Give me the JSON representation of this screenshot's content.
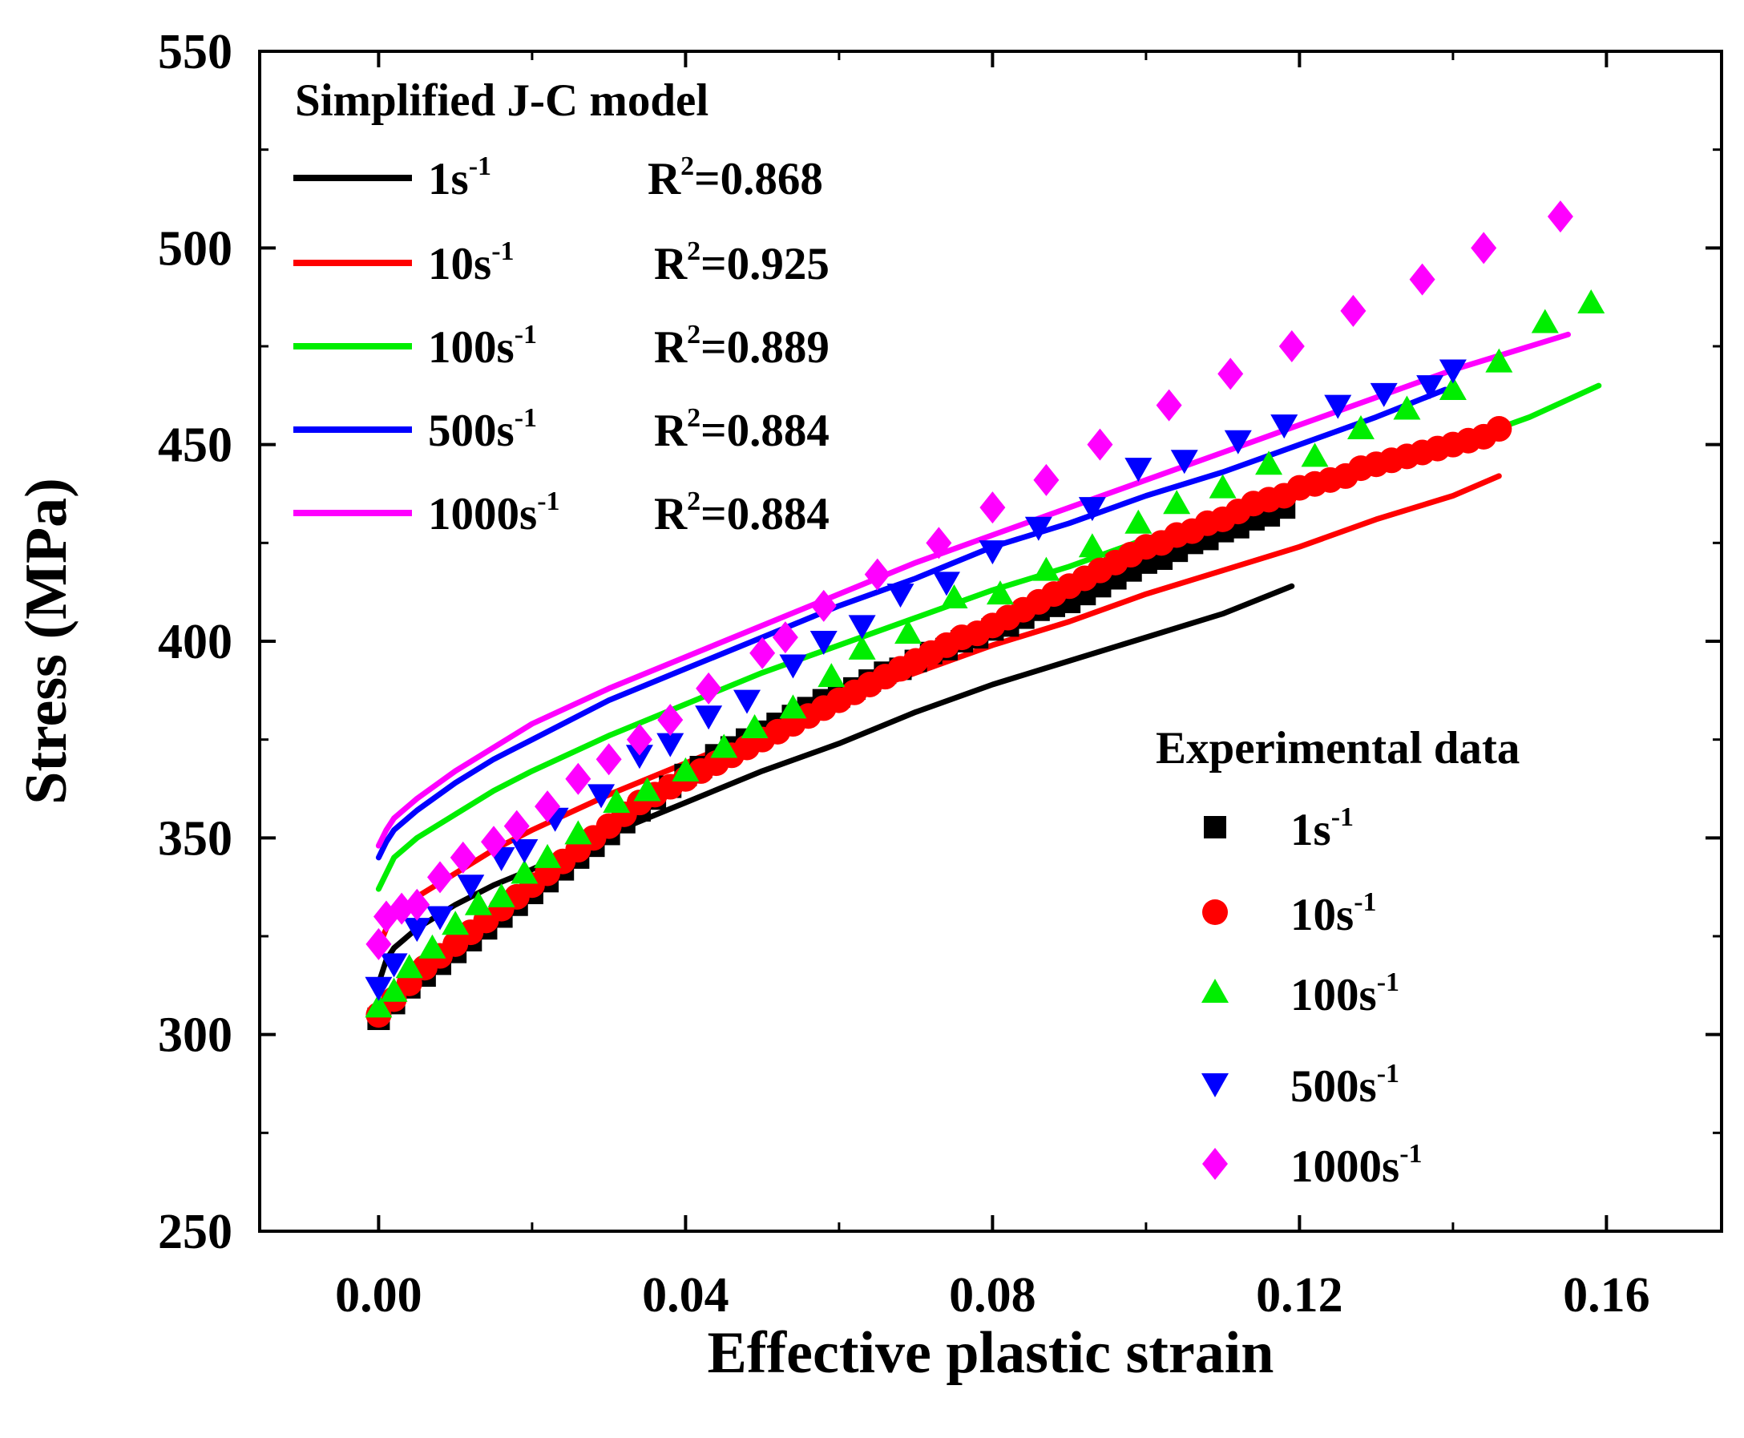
{
  "chart_data": {
    "type": "scatter",
    "xlabel": "Effective plastic strain",
    "ylabel": "Stress (MPa)",
    "xlim": [
      -0.0155,
      0.175
    ],
    "ylim": [
      250,
      550
    ],
    "x_ticks": [
      "0.00",
      "0.04",
      "0.08",
      "0.12",
      "0.16"
    ],
    "x_tick_values": [
      0.0,
      0.04,
      0.08,
      0.12,
      0.16
    ],
    "y_ticks": [
      "250",
      "300",
      "350",
      "400",
      "450",
      "500",
      "550"
    ],
    "y_tick_values": [
      250,
      300,
      350,
      400,
      450,
      500,
      550
    ],
    "grid": false,
    "model_legend": {
      "title": "Simplified J-C model",
      "placement": "top-left",
      "entries": [
        {
          "rate": "1s",
          "exp": "-1",
          "r2_prefix": "R",
          "r2_exp": "2",
          "r2_value": "=0.868"
        },
        {
          "rate": "10s",
          "exp": "-1",
          "r2_prefix": "R",
          "r2_exp": "2",
          "r2_value": "=0.925"
        },
        {
          "rate": "100s",
          "exp": "-1",
          "r2_prefix": "R",
          "r2_exp": "2",
          "r2_value": "=0.889"
        },
        {
          "rate": "500s",
          "exp": "-1",
          "r2_prefix": "R",
          "r2_exp": "2",
          "r2_value": "=0.884"
        },
        {
          "rate": "1000s",
          "exp": "-1",
          "r2_prefix": "R",
          "r2_exp": "2",
          "r2_value": "=0.884"
        }
      ]
    },
    "exp_legend": {
      "title": "Experimental data",
      "placement": "bottom-right",
      "entries": [
        {
          "rate": "1s",
          "exp": "-1"
        },
        {
          "rate": "10s",
          "exp": "-1"
        },
        {
          "rate": "100s",
          "exp": "-1"
        },
        {
          "rate": "500s",
          "exp": "-1"
        },
        {
          "rate": "1000s",
          "exp": "-1"
        }
      ]
    },
    "model_series": [
      {
        "name": "1s-1 model",
        "color": "#000000",
        "x": [
          0,
          0.001,
          0.002,
          0.005,
          0.01,
          0.015,
          0.02,
          0.03,
          0.04,
          0.05,
          0.06,
          0.07,
          0.08,
          0.09,
          0.1,
          0.11,
          0.119
        ],
        "y": [
          313,
          319,
          322,
          327,
          333,
          338,
          342,
          351,
          359,
          367,
          374,
          382,
          389,
          395,
          401,
          407,
          414
        ]
      },
      {
        "name": "10s-1 model",
        "color": "#ff0000",
        "x": [
          0,
          0.001,
          0.002,
          0.005,
          0.01,
          0.015,
          0.02,
          0.03,
          0.04,
          0.05,
          0.06,
          0.07,
          0.08,
          0.09,
          0.1,
          0.11,
          0.12,
          0.13,
          0.14,
          0.146
        ],
        "y": [
          322,
          327,
          330,
          335,
          341,
          347,
          352,
          361,
          369,
          377,
          385,
          392,
          399,
          405,
          412,
          418,
          424,
          431,
          437,
          442
        ]
      },
      {
        "name": "100s-1 model",
        "color": "#00ee00",
        "x": [
          0,
          0.001,
          0.002,
          0.005,
          0.01,
          0.015,
          0.02,
          0.03,
          0.04,
          0.05,
          0.06,
          0.07,
          0.08,
          0.09,
          0.1,
          0.11,
          0.12,
          0.13,
          0.14,
          0.15,
          0.159
        ],
        "y": [
          337,
          341,
          345,
          350,
          356,
          362,
          367,
          376,
          384,
          392,
          399,
          406,
          413,
          419,
          426,
          432,
          438,
          444,
          450,
          457,
          465
        ]
      },
      {
        "name": "500s-1 model",
        "color": "#0000ff",
        "x": [
          0,
          0.001,
          0.002,
          0.005,
          0.01,
          0.015,
          0.02,
          0.03,
          0.04,
          0.05,
          0.06,
          0.07,
          0.08,
          0.09,
          0.1,
          0.11,
          0.12,
          0.13,
          0.139
        ],
        "y": [
          345,
          349,
          352,
          357,
          364,
          370,
          375,
          385,
          393,
          401,
          409,
          416,
          424,
          430,
          437,
          443,
          450,
          457,
          464
        ]
      },
      {
        "name": "1000s-1 model",
        "color": "#ff00ff",
        "x": [
          0,
          0.001,
          0.002,
          0.005,
          0.01,
          0.015,
          0.02,
          0.03,
          0.04,
          0.05,
          0.06,
          0.07,
          0.08,
          0.09,
          0.1,
          0.11,
          0.12,
          0.13,
          0.14,
          0.155
        ],
        "y": [
          348,
          352,
          355,
          360,
          367,
          373,
          379,
          388,
          396,
          404,
          412,
          420,
          427,
          434,
          441,
          448,
          455,
          462,
          469,
          478
        ]
      }
    ],
    "experimental_series": [
      {
        "name": "1s-1 experimental",
        "marker": "square",
        "color": "#000000",
        "x": [
          0,
          0.002,
          0.004,
          0.006,
          0.008,
          0.01,
          0.012,
          0.014,
          0.016,
          0.018,
          0.02,
          0.022,
          0.024,
          0.026,
          0.028,
          0.03,
          0.032,
          0.034,
          0.036,
          0.038,
          0.04,
          0.042,
          0.044,
          0.046,
          0.048,
          0.05,
          0.052,
          0.054,
          0.056,
          0.058,
          0.06,
          0.062,
          0.064,
          0.066,
          0.068,
          0.07,
          0.072,
          0.074,
          0.076,
          0.078,
          0.08,
          0.082,
          0.084,
          0.086,
          0.088,
          0.09,
          0.092,
          0.094,
          0.096,
          0.098,
          0.1,
          0.102,
          0.104,
          0.106,
          0.108,
          0.11,
          0.112,
          0.114,
          0.116,
          0.118
        ],
        "y": [
          304,
          308,
          312,
          315,
          318,
          321,
          324,
          327,
          330,
          333,
          336,
          339,
          342,
          345,
          348,
          351,
          354,
          357,
          360,
          363,
          366,
          368,
          371,
          373,
          375,
          377,
          379,
          381,
          383,
          385,
          386,
          388,
          390,
          392,
          393,
          395,
          397,
          398,
          400,
          401,
          403,
          404,
          406,
          408,
          409,
          410,
          412,
          414,
          416,
          418,
          420,
          421,
          423,
          425,
          426,
          428,
          429,
          431,
          432,
          434
        ]
      },
      {
        "name": "10s-1 experimental",
        "marker": "circle",
        "color": "#ff0000",
        "x": [
          0,
          0.002,
          0.004,
          0.006,
          0.008,
          0.01,
          0.012,
          0.014,
          0.016,
          0.018,
          0.02,
          0.022,
          0.024,
          0.026,
          0.028,
          0.03,
          0.032,
          0.034,
          0.036,
          0.038,
          0.04,
          0.042,
          0.044,
          0.046,
          0.048,
          0.05,
          0.052,
          0.054,
          0.056,
          0.058,
          0.06,
          0.062,
          0.064,
          0.066,
          0.068,
          0.07,
          0.072,
          0.074,
          0.076,
          0.078,
          0.08,
          0.082,
          0.084,
          0.086,
          0.088,
          0.09,
          0.092,
          0.094,
          0.096,
          0.098,
          0.1,
          0.102,
          0.104,
          0.106,
          0.108,
          0.11,
          0.112,
          0.114,
          0.116,
          0.118,
          0.12,
          0.122,
          0.124,
          0.126,
          0.128,
          0.13,
          0.132,
          0.134,
          0.136,
          0.138,
          0.14,
          0.142,
          0.144,
          0.146
        ],
        "y": [
          305,
          309,
          313,
          317,
          320,
          323,
          326,
          329,
          332,
          335,
          338,
          341,
          344,
          347,
          350,
          353,
          356,
          359,
          361,
          363,
          365,
          367,
          369,
          371,
          373,
          375,
          377,
          379,
          381,
          383,
          385,
          387,
          389,
          391,
          393,
          395,
          397,
          399,
          401,
          402,
          404,
          406,
          408,
          410,
          412,
          414,
          416,
          418,
          420,
          422,
          424,
          425,
          427,
          428,
          430,
          431,
          433,
          435,
          436,
          437,
          439,
          440,
          441,
          442,
          444,
          445,
          446,
          447,
          448,
          449,
          450,
          451,
          452,
          454
        ]
      },
      {
        "name": "100s-1 experimental",
        "marker": "triangle-up",
        "color": "#00ee00",
        "x": [
          0,
          0.002,
          0.004,
          0.007,
          0.01,
          0.013,
          0.016,
          0.019,
          0.022,
          0.026,
          0.031,
          0.035,
          0.04,
          0.045,
          0.049,
          0.054,
          0.059,
          0.063,
          0.069,
          0.075,
          0.081,
          0.087,
          0.093,
          0.099,
          0.104,
          0.11,
          0.116,
          0.122,
          0.128,
          0.134,
          0.14,
          0.146,
          0.152,
          0.158
        ],
        "y": [
          307,
          311,
          317,
          322,
          328,
          333,
          335,
          341,
          345,
          351,
          359,
          362,
          367,
          373,
          378,
          383,
          391,
          398,
          402,
          411,
          412,
          418,
          424,
          430,
          435,
          439,
          445,
          447,
          454,
          459,
          464,
          471,
          481,
          486
        ]
      },
      {
        "name": "500s-1 experimental",
        "marker": "triangle-down",
        "color": "#0000ff",
        "x": [
          0,
          0.002,
          0.005,
          0.008,
          0.012,
          0.016,
          0.019,
          0.023,
          0.029,
          0.034,
          0.038,
          0.043,
          0.048,
          0.054,
          0.058,
          0.063,
          0.068,
          0.074,
          0.08,
          0.086,
          0.093,
          0.099,
          0.105,
          0.112,
          0.118,
          0.125,
          0.131,
          0.137,
          0.14
        ],
        "y": [
          312,
          318,
          327,
          330,
          338,
          345,
          347,
          355,
          361,
          371,
          374,
          381,
          385,
          394,
          400,
          404,
          412,
          415,
          423,
          429,
          434,
          444,
          446,
          451,
          455,
          460,
          463,
          465,
          469
        ]
      },
      {
        "name": "1000s-1 experimental",
        "marker": "diamond",
        "color": "#ff00ff",
        "x": [
          0,
          0.001,
          0.003,
          0.005,
          0.008,
          0.011,
          0.015,
          0.018,
          0.022,
          0.026,
          0.03,
          0.034,
          0.038,
          0.043,
          0.05,
          0.053,
          0.058,
          0.065,
          0.073,
          0.08,
          0.087,
          0.094,
          0.103,
          0.111,
          0.119,
          0.127,
          0.136,
          0.144,
          0.154
        ],
        "y": [
          323,
          330,
          332,
          333,
          340,
          345,
          349,
          353,
          358,
          365,
          370,
          375,
          380,
          388,
          397,
          401,
          409,
          417,
          425,
          434,
          441,
          450,
          460,
          468,
          475,
          484,
          492,
          500,
          508
        ]
      }
    ]
  }
}
